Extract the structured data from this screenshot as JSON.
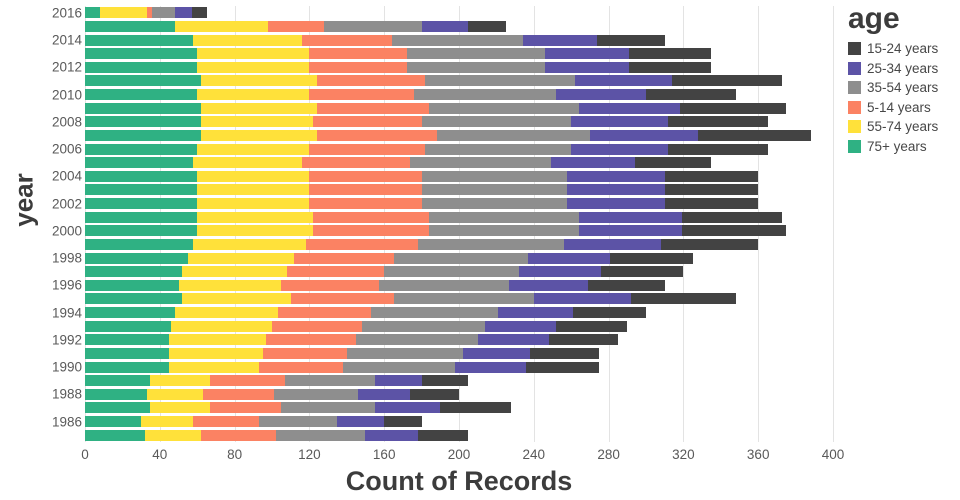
{
  "chart_data": {
    "type": "bar",
    "orientation": "horizontal",
    "stacked": true,
    "xlabel": "Count of Records",
    "ylabel": "year",
    "legend_title": "age",
    "legend_position": "top-right",
    "grid": "vertical",
    "xlim": [
      0,
      400
    ],
    "x_ticks": [
      0,
      40,
      80,
      120,
      160,
      200,
      240,
      280,
      320,
      360,
      400
    ],
    "y_tick_labels": [
      2016,
      2014,
      2012,
      2010,
      2008,
      2006,
      2004,
      2002,
      2000,
      1998,
      1996,
      1994,
      1992,
      1990,
      1988,
      1986
    ],
    "years": [
      2016,
      2015,
      2014,
      2013,
      2012,
      2011,
      2010,
      2009,
      2008,
      2007,
      2006,
      2005,
      2004,
      2003,
      2002,
      2001,
      2000,
      1999,
      1998,
      1997,
      1996,
      1995,
      1994,
      1993,
      1992,
      1991,
      1990,
      1989,
      1988,
      1987,
      1986,
      1985
    ],
    "stack_order": [
      "75+ years",
      "55-74 years",
      "5-14 years",
      "35-54 years",
      "25-34 years",
      "15-24 years"
    ],
    "series": [
      {
        "name": "15-24 years",
        "color": "#434343",
        "values": [
          8,
          20,
          36,
          44,
          44,
          59,
          48,
          57,
          53,
          60,
          53,
          41,
          50,
          50,
          50,
          54,
          56,
          52,
          44,
          44,
          41,
          56,
          39,
          38,
          37,
          37,
          39,
          25,
          26,
          38,
          20,
          27
        ]
      },
      {
        "name": "25-34 years",
        "color": "#5c53a6",
        "values": [
          9,
          25,
          40,
          45,
          45,
          52,
          48,
          54,
          52,
          58,
          52,
          45,
          52,
          52,
          52,
          55,
          55,
          52,
          44,
          44,
          42,
          52,
          40,
          38,
          38,
          36,
          38,
          25,
          28,
          35,
          25,
          28
        ]
      },
      {
        "name": "35-54 years",
        "color": "#8e8e8e",
        "values": [
          12,
          52,
          70,
          74,
          74,
          80,
          76,
          80,
          80,
          82,
          78,
          75,
          78,
          78,
          78,
          80,
          80,
          78,
          72,
          72,
          70,
          75,
          68,
          66,
          65,
          62,
          60,
          48,
          45,
          50,
          42,
          48
        ]
      },
      {
        "name": "5-14 years",
        "color": "#fb8263",
        "values": [
          3,
          30,
          48,
          52,
          52,
          58,
          56,
          60,
          58,
          64,
          62,
          58,
          60,
          60,
          60,
          62,
          62,
          60,
          53,
          52,
          52,
          55,
          50,
          48,
          48,
          45,
          45,
          40,
          38,
          38,
          35,
          40
        ]
      },
      {
        "name": "55-74 years",
        "color": "#ffe13a",
        "values": [
          25,
          50,
          58,
          60,
          60,
          62,
          60,
          62,
          60,
          62,
          60,
          58,
          60,
          60,
          60,
          62,
          62,
          60,
          57,
          56,
          55,
          58,
          55,
          54,
          52,
          50,
          48,
          32,
          30,
          32,
          28,
          30
        ]
      },
      {
        "name": "75+ years",
        "color": "#2fb183",
        "values": [
          8,
          48,
          58,
          60,
          60,
          62,
          60,
          62,
          62,
          62,
          60,
          58,
          60,
          60,
          60,
          60,
          60,
          58,
          55,
          52,
          50,
          52,
          48,
          46,
          45,
          45,
          45,
          35,
          33,
          35,
          30,
          32
        ]
      }
    ]
  }
}
